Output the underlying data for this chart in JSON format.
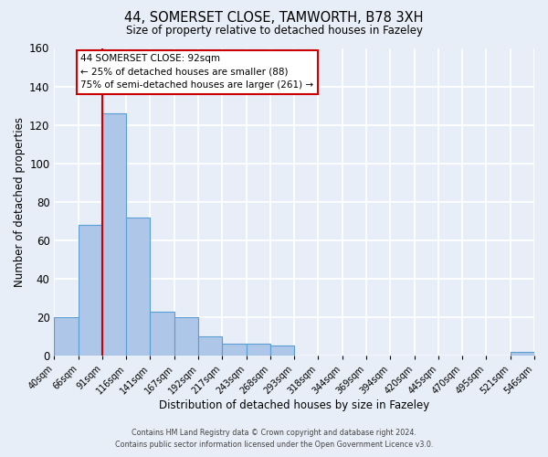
{
  "title1": "44, SOMERSET CLOSE, TAMWORTH, B78 3XH",
  "title2": "Size of property relative to detached houses in Fazeley",
  "xlabel": "Distribution of detached houses by size in Fazeley",
  "ylabel": "Number of detached properties",
  "bin_labels": [
    "40sqm",
    "66sqm",
    "91sqm",
    "116sqm",
    "141sqm",
    "167sqm",
    "192sqm",
    "217sqm",
    "243sqm",
    "268sqm",
    "293sqm",
    "318sqm",
    "344sqm",
    "369sqm",
    "394sqm",
    "420sqm",
    "445sqm",
    "470sqm",
    "495sqm",
    "521sqm",
    "546sqm"
  ],
  "bar_values": [
    20,
    68,
    126,
    72,
    23,
    20,
    10,
    6,
    6,
    5,
    0,
    0,
    0,
    0,
    0,
    0,
    0,
    0,
    0,
    2
  ],
  "bar_color": "#aec6e8",
  "bar_edgecolor": "#5a9fd4",
  "vline_color": "#cc0000",
  "ylim": [
    0,
    160
  ],
  "yticks": [
    0,
    20,
    40,
    60,
    80,
    100,
    120,
    140,
    160
  ],
  "annotation_title": "44 SOMERSET CLOSE: 92sqm",
  "annotation_line1": "← 25% of detached houses are smaller (88)",
  "annotation_line2": "75% of semi-detached houses are larger (261) →",
  "annotation_box_color": "#ffffff",
  "annotation_box_edgecolor": "#cc0000",
  "footer1": "Contains HM Land Registry data © Crown copyright and database right 2024.",
  "footer2": "Contains public sector information licensed under the Open Government Licence v3.0.",
  "background_color": "#e8eef7",
  "grid_color": "#ffffff"
}
